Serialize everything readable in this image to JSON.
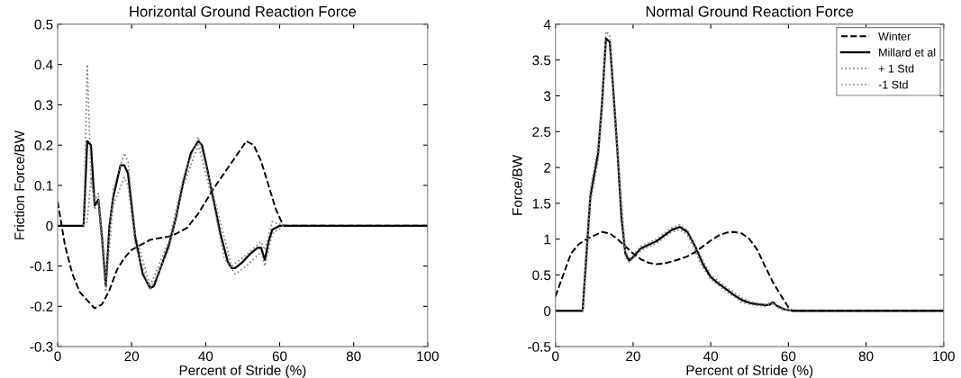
{
  "chart_data": [
    {
      "type": "line",
      "title": "Horizontal Ground Reaction Force",
      "xlabel": "Percent of Stride (%)",
      "ylabel": "Friction Force/BW",
      "xlim": [
        0,
        100
      ],
      "xticks": [
        0,
        20,
        40,
        60,
        80,
        100
      ],
      "ylim": [
        -0.3,
        0.5
      ],
      "yticks": [
        -0.3,
        -0.2,
        -0.1,
        0,
        0.1,
        0.2,
        0.3,
        0.4,
        0.5
      ],
      "grid": false,
      "legend": false,
      "series": [
        {
          "color": "#000000",
          "line_style": "dashed",
          "x": [
            0,
            2,
            4,
            6,
            8,
            10,
            12,
            14,
            16,
            18,
            20,
            22,
            25,
            28,
            30,
            32,
            35,
            38,
            40,
            42,
            45,
            48,
            51,
            53,
            55,
            57,
            59,
            61,
            100
          ],
          "values": [
            0.06,
            -0.05,
            -0.12,
            -0.165,
            -0.185,
            -0.205,
            -0.195,
            -0.16,
            -0.11,
            -0.08,
            -0.06,
            -0.05,
            -0.035,
            -0.03,
            -0.027,
            -0.02,
            -0.005,
            0.03,
            0.06,
            0.09,
            0.13,
            0.17,
            0.21,
            0.2,
            0.16,
            0.1,
            0.04,
            0,
            0
          ]
        },
        {
          "color": "#000000",
          "line_style": "solid",
          "x": [
            0,
            7,
            8,
            9,
            10,
            11,
            12,
            13,
            14,
            15,
            17,
            18,
            19,
            20,
            21,
            23,
            25,
            26,
            28,
            30,
            32,
            34,
            36,
            38,
            39,
            40,
            42,
            44,
            46,
            47,
            48,
            50,
            52,
            54,
            55,
            56,
            57,
            58,
            60,
            61,
            100
          ],
          "values": [
            0,
            0,
            0.21,
            0.2,
            0.05,
            0.065,
            -0.03,
            -0.15,
            0,
            0.07,
            0.15,
            0.15,
            0.13,
            0.05,
            -0.03,
            -0.12,
            -0.155,
            -0.15,
            -0.1,
            -0.05,
            0.02,
            0.11,
            0.18,
            0.21,
            0.2,
            0.16,
            0.07,
            -0.02,
            -0.09,
            -0.105,
            -0.105,
            -0.09,
            -0.07,
            -0.055,
            -0.055,
            -0.085,
            -0.04,
            -0.01,
            0,
            0,
            0
          ]
        },
        {
          "color": "#808080",
          "line_style": "dotted",
          "x": [
            7,
            8,
            9,
            10,
            11,
            13,
            15,
            18,
            19,
            21,
            25,
            30,
            34,
            38,
            42,
            47,
            50,
            55,
            56,
            58,
            61
          ],
          "values": [
            0,
            0.4,
            0.12,
            0.06,
            0.08,
            -0.13,
            0.09,
            0.18,
            0.16,
            -0.02,
            -0.15,
            -0.04,
            0.12,
            0.22,
            0.08,
            -0.1,
            -0.08,
            -0.04,
            -0.06,
            0.01,
            0
          ]
        },
        {
          "color": "#808080",
          "line_style": "dotted",
          "x": [
            7,
            8,
            9,
            10,
            11,
            13,
            15,
            18,
            19,
            21,
            25,
            30,
            34,
            38,
            42,
            45,
            48,
            51,
            55,
            56,
            58,
            61
          ],
          "values": [
            0,
            0.01,
            0.12,
            0.04,
            0.06,
            -0.16,
            0.05,
            0.12,
            0.1,
            -0.05,
            -0.16,
            -0.06,
            0.1,
            0.2,
            0.06,
            -0.08,
            -0.12,
            -0.1,
            -0.065,
            -0.1,
            -0.02,
            0
          ]
        }
      ]
    },
    {
      "type": "line",
      "title": "Normal Ground Reaction Force",
      "xlabel": "Percent of Stride (%)",
      "ylabel": "Force/BW",
      "xlim": [
        0,
        100
      ],
      "xticks": [
        0,
        20,
        40,
        60,
        80,
        100
      ],
      "ylim": [
        -0.5,
        4
      ],
      "yticks": [
        -0.5,
        0,
        0.5,
        1,
        1.5,
        2,
        2.5,
        3,
        3.5,
        4
      ],
      "grid": false,
      "legend": "top right",
      "series": [
        {
          "name": "Winter",
          "color": "#000000",
          "line_style": "dashed",
          "x": [
            0,
            2,
            4,
            6,
            8,
            10,
            12,
            14,
            16,
            18,
            20,
            22,
            24,
            26,
            28,
            30,
            32,
            34,
            36,
            38,
            40,
            42,
            44,
            46,
            48,
            50,
            52,
            54,
            56,
            58,
            60,
            61,
            100
          ],
          "values": [
            0.2,
            0.5,
            0.8,
            0.93,
            1.0,
            1.05,
            1.1,
            1.08,
            1.0,
            0.9,
            0.8,
            0.72,
            0.67,
            0.65,
            0.66,
            0.69,
            0.72,
            0.76,
            0.82,
            0.9,
            0.98,
            1.05,
            1.09,
            1.1,
            1.08,
            1.0,
            0.85,
            0.62,
            0.4,
            0.22,
            0.05,
            0,
            0
          ]
        },
        {
          "name": "Millard et al",
          "color": "#000000",
          "line_style": "solid",
          "x": [
            0,
            7,
            8,
            9,
            10,
            11,
            12,
            13,
            14,
            15,
            16,
            17,
            18,
            19,
            20,
            22,
            24,
            26,
            28,
            30,
            32,
            34,
            36,
            38,
            40,
            42,
            44,
            46,
            48,
            50,
            52,
            54,
            55,
            56,
            57,
            59,
            61,
            100
          ],
          "values": [
            0,
            0,
            0.8,
            1.6,
            1.9,
            2.2,
            2.9,
            3.8,
            3.75,
            3.0,
            2.2,
            1.3,
            0.8,
            0.7,
            0.75,
            0.87,
            0.92,
            0.97,
            1.05,
            1.13,
            1.17,
            1.1,
            0.9,
            0.65,
            0.47,
            0.38,
            0.3,
            0.22,
            0.15,
            0.11,
            0.09,
            0.08,
            0.08,
            0.12,
            0.07,
            0.02,
            0,
            0
          ]
        },
        {
          "name": "+ 1 Std",
          "color": "#808080",
          "line_style": "dotted",
          "x": [
            7,
            8,
            9,
            11,
            12,
            13,
            14,
            16,
            18,
            19,
            22,
            26,
            30,
            32,
            34,
            38,
            40,
            44,
            48,
            50,
            54,
            56,
            58,
            61
          ],
          "values": [
            0,
            0.9,
            1.7,
            2.3,
            3.0,
            3.9,
            3.85,
            2.3,
            0.85,
            0.72,
            0.9,
            1.0,
            1.16,
            1.2,
            1.13,
            0.7,
            0.5,
            0.33,
            0.18,
            0.13,
            0.09,
            0.13,
            0.05,
            0
          ]
        },
        {
          "name": "-1 Std",
          "color": "#808080",
          "line_style": "dotted",
          "x": [
            7,
            8,
            9,
            11,
            12,
            13,
            14,
            16,
            18,
            19,
            22,
            26,
            30,
            32,
            34,
            38,
            40,
            44,
            48,
            50,
            54,
            56,
            58,
            61
          ],
          "values": [
            0,
            0.6,
            1.5,
            2.1,
            2.8,
            3.7,
            3.65,
            2.1,
            0.75,
            0.68,
            0.84,
            0.94,
            1.1,
            1.13,
            1.06,
            0.6,
            0.44,
            0.27,
            0.12,
            0.09,
            0.06,
            0.1,
            0.02,
            0
          ]
        }
      ]
    }
  ]
}
